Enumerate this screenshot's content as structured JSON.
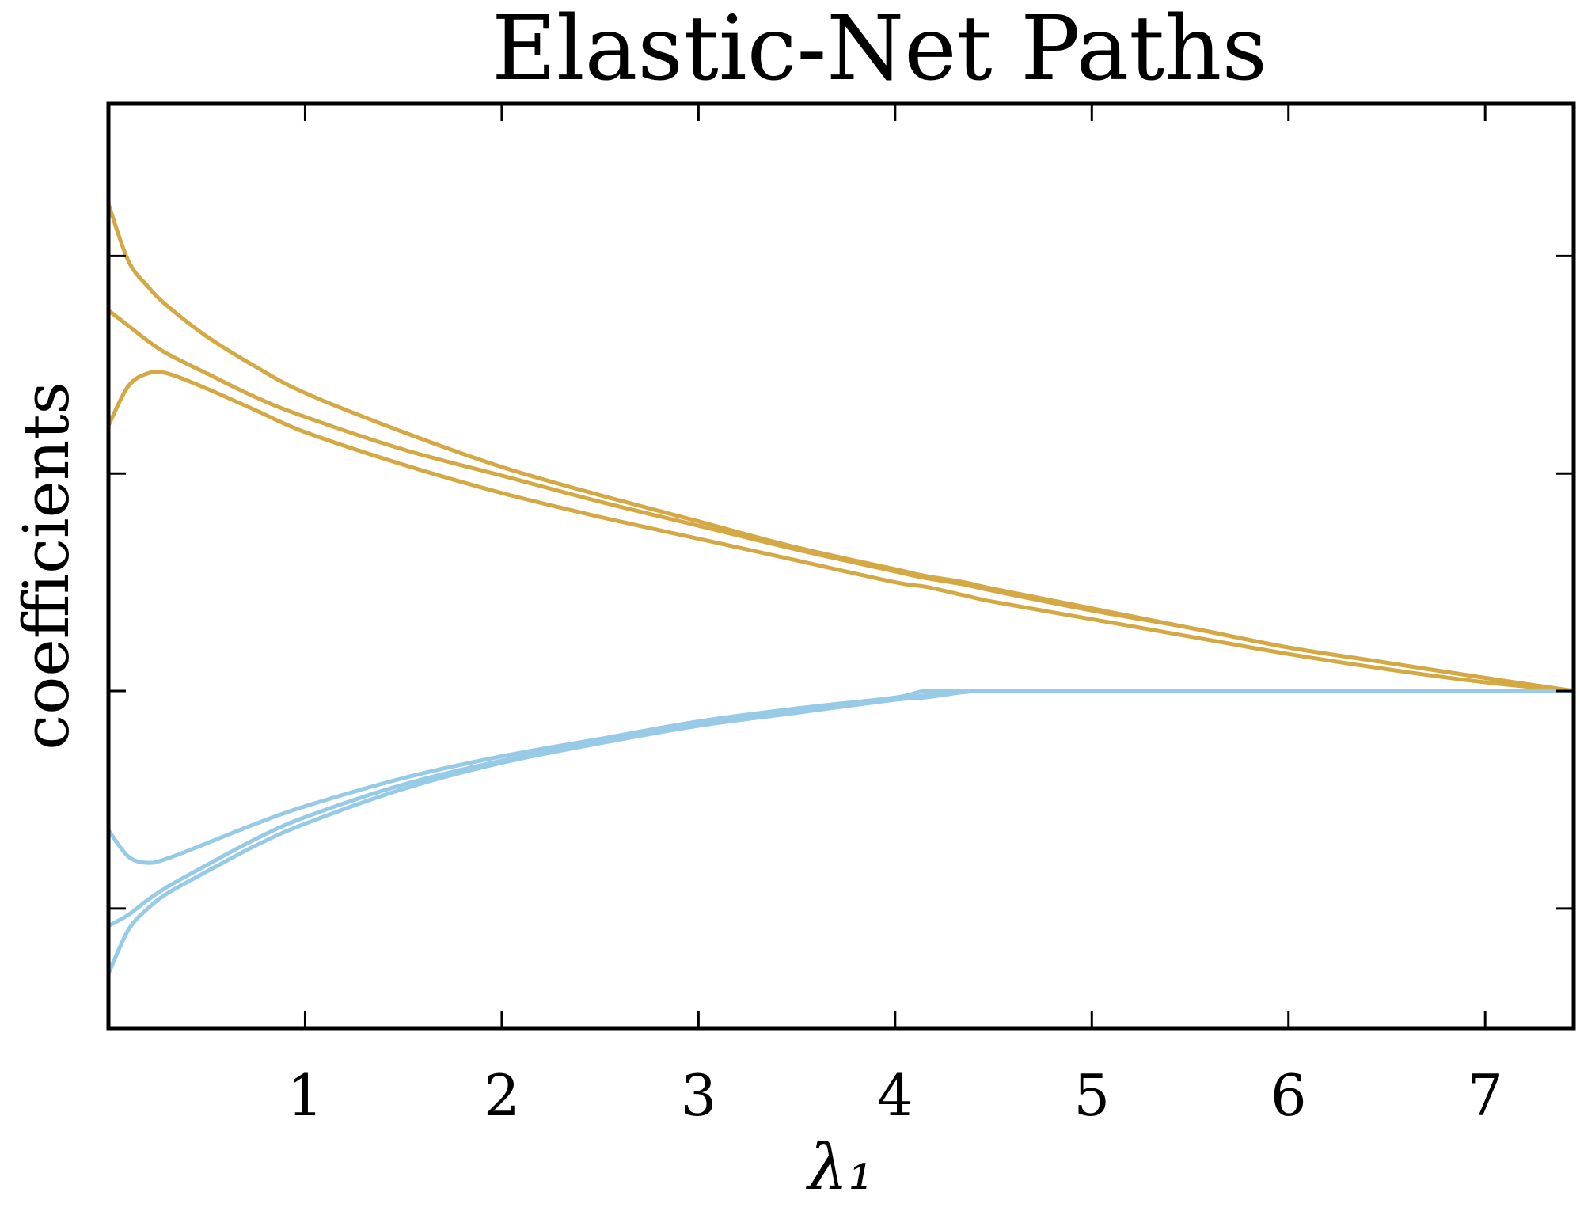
{
  "chart_data": {
    "type": "line",
    "title": "Elastic-Net Paths",
    "xlabel": "λ₁",
    "ylabel": "coefficients",
    "xlim": [
      0.0,
      7.45
    ],
    "ylim": [
      -1.55,
      2.7
    ],
    "xticks": [
      1,
      2,
      3,
      4,
      5,
      6,
      7
    ],
    "xtick_labels": [
      "1",
      "2",
      "3",
      "4",
      "5",
      "6",
      "7"
    ],
    "yticks": [
      -1,
      0,
      1,
      2
    ],
    "ytick_labels": [
      "",
      "",
      "",
      ""
    ],
    "grid": false,
    "legend": "none",
    "colors": {
      "positive": "#D4A843",
      "negative": "#96CAE6",
      "axes": "#000000"
    },
    "x": [
      0.0,
      0.1,
      0.2,
      0.3,
      0.5,
      0.75,
      1.0,
      1.5,
      2.0,
      2.5,
      3.0,
      3.5,
      4.0,
      4.15,
      4.35,
      4.5,
      5.0,
      5.5,
      6.0,
      6.5,
      7.0,
      7.45
    ],
    "series": [
      {
        "group": "positive",
        "values": [
          2.24,
          1.98,
          1.86,
          1.77,
          1.63,
          1.49,
          1.37,
          1.19,
          1.03,
          0.9,
          0.78,
          0.66,
          0.56,
          0.53,
          0.5,
          0.47,
          0.38,
          0.29,
          0.2,
          0.13,
          0.06,
          0.0
        ]
      },
      {
        "group": "positive",
        "values": [
          1.75,
          1.68,
          1.61,
          1.55,
          1.46,
          1.35,
          1.26,
          1.11,
          0.99,
          0.87,
          0.76,
          0.65,
          0.55,
          0.52,
          0.49,
          0.46,
          0.37,
          0.29,
          0.2,
          0.13,
          0.06,
          0.0
        ]
      },
      {
        "group": "positive",
        "values": [
          1.22,
          1.4,
          1.46,
          1.46,
          1.39,
          1.29,
          1.19,
          1.04,
          0.91,
          0.8,
          0.7,
          0.6,
          0.5,
          0.48,
          0.44,
          0.41,
          0.33,
          0.25,
          0.17,
          0.1,
          0.04,
          0.0
        ]
      },
      {
        "group": "negative",
        "values": [
          -0.64,
          -0.76,
          -0.79,
          -0.77,
          -0.7,
          -0.61,
          -0.53,
          -0.4,
          -0.3,
          -0.22,
          -0.14,
          -0.08,
          -0.03,
          0.0,
          0.0,
          0.0,
          0.0,
          0.0,
          0.0,
          0.0,
          0.0,
          0.0
        ]
      },
      {
        "group": "negative",
        "values": [
          -1.08,
          -1.03,
          -0.96,
          -0.9,
          -0.8,
          -0.68,
          -0.58,
          -0.43,
          -0.32,
          -0.23,
          -0.15,
          -0.09,
          -0.04,
          -0.02,
          0.0,
          0.0,
          0.0,
          0.0,
          0.0,
          0.0,
          0.0,
          0.0
        ]
      },
      {
        "group": "negative",
        "values": [
          -1.3,
          -1.1,
          -1.0,
          -0.93,
          -0.83,
          -0.71,
          -0.61,
          -0.45,
          -0.33,
          -0.24,
          -0.16,
          -0.1,
          -0.04,
          -0.03,
          -0.005,
          0.0,
          0.0,
          0.0,
          0.0,
          0.0,
          0.0,
          0.0
        ]
      }
    ]
  }
}
